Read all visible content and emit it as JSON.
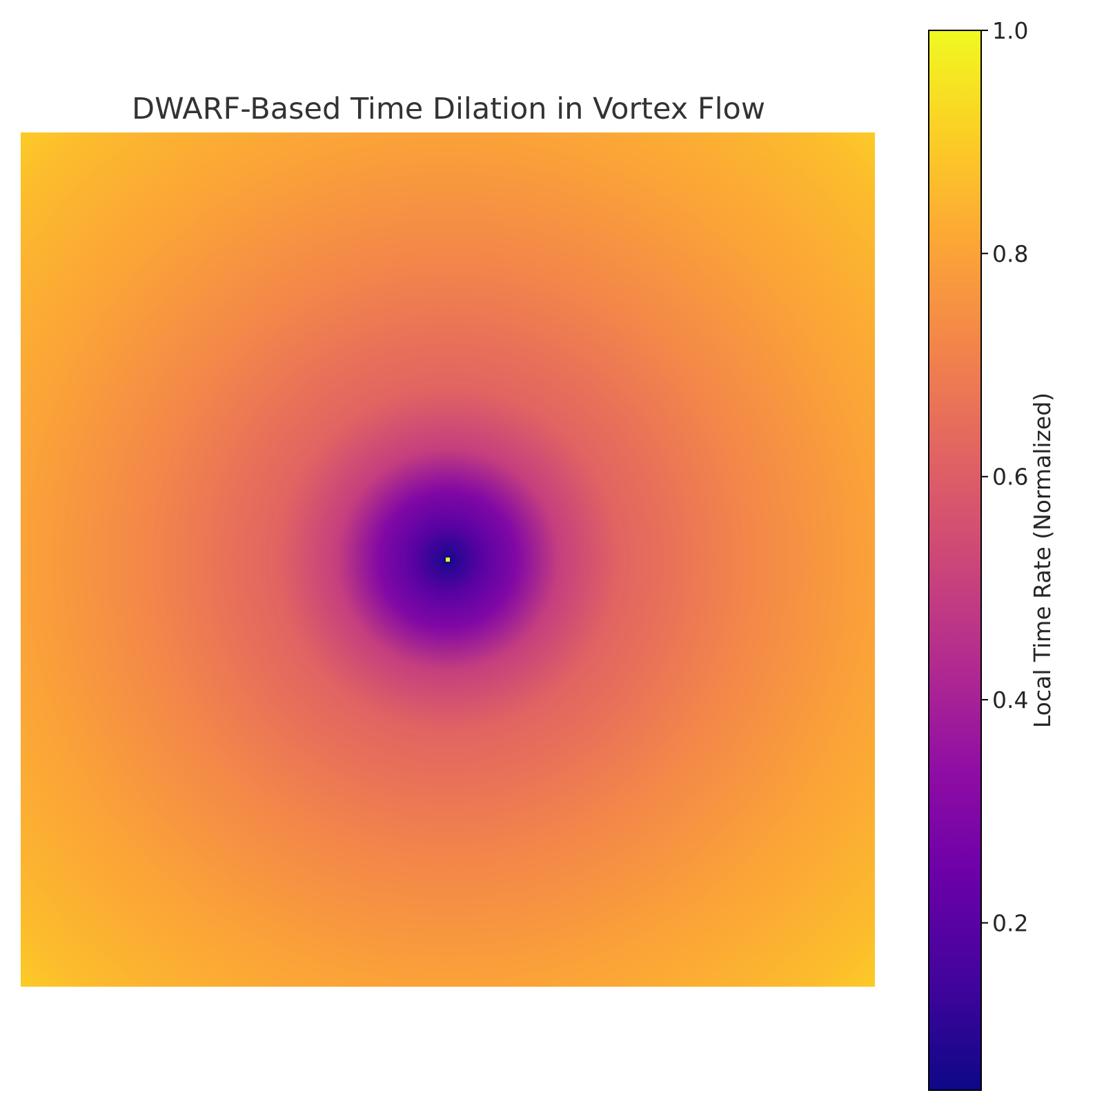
{
  "chart_data": {
    "type": "heatmap",
    "title": "DWARF-Based Time Dilation in Vortex Flow",
    "xlabel": "",
    "ylabel": "",
    "axes_visible": false,
    "field": "radial",
    "center_fraction": [
      0.5,
      0.5
    ],
    "center_value": 0.05,
    "radial_profile": [
      {
        "r": 0.0,
        "value": 0.05
      },
      {
        "r": 0.01,
        "value": 0.1
      },
      {
        "r": 0.04,
        "value": 0.2
      },
      {
        "r": 0.08,
        "value": 0.3
      },
      {
        "r": 0.13,
        "value": 0.5
      },
      {
        "r": 0.2,
        "value": 0.62
      },
      {
        "r": 0.35,
        "value": 0.72
      },
      {
        "r": 0.5,
        "value": 0.8
      },
      {
        "r": 0.65,
        "value": 0.86
      },
      {
        "r": 0.71,
        "value": 0.9
      }
    ],
    "center_singularity_value": 1.0,
    "colormap": "plasma",
    "colorbar": {
      "label": "Local Time Rate (Normalized)",
      "range": [
        0.05,
        1.0
      ],
      "ticks": [
        0.2,
        0.4,
        0.6,
        0.8,
        1.0
      ],
      "tick_labels": [
        "0.2",
        "0.4",
        "0.6",
        "0.8",
        "1.0"
      ]
    }
  }
}
